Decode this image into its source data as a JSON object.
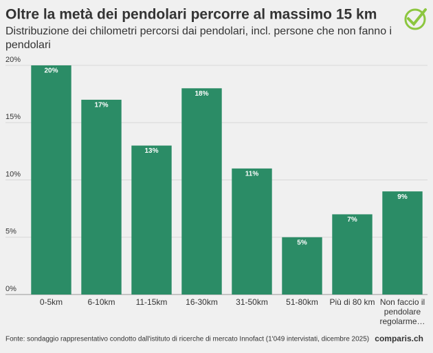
{
  "chart_data": {
    "type": "bar",
    "title": "Oltre la metà dei pendolari percorre al massimo 15 km",
    "subtitle": "Distribuzione dei chilometri percorsi dai pendolari, incl. persone che non fanno i pendolari",
    "categories": [
      "0-5km",
      "6-10km",
      "11-15km",
      "16-30km",
      "31-50km",
      "51-80km",
      "Più di 80 km",
      "Non faccio il pendolare regolarme…"
    ],
    "values": [
      20,
      17,
      13,
      18,
      11,
      5,
      7,
      9
    ],
    "value_labels": [
      "20%",
      "17%",
      "13%",
      "18%",
      "11%",
      "5%",
      "7%",
      "9%"
    ],
    "color": "#2b8c66",
    "ylim": [
      0,
      20
    ],
    "yticks": [
      {
        "value": 0,
        "label": "0%"
      },
      {
        "value": 5,
        "label": "5%"
      },
      {
        "value": 10,
        "label": "10%"
      },
      {
        "value": 15,
        "label": "15%"
      },
      {
        "value": 20,
        "label": "20%"
      }
    ],
    "grid": true,
    "source": "Fonte: sondaggio rappresentativo condotto dall'istituto di ricerche di mercato Innofact (1'049 intervistati, dicembre 2025)",
    "logo": "comparis.ch"
  }
}
